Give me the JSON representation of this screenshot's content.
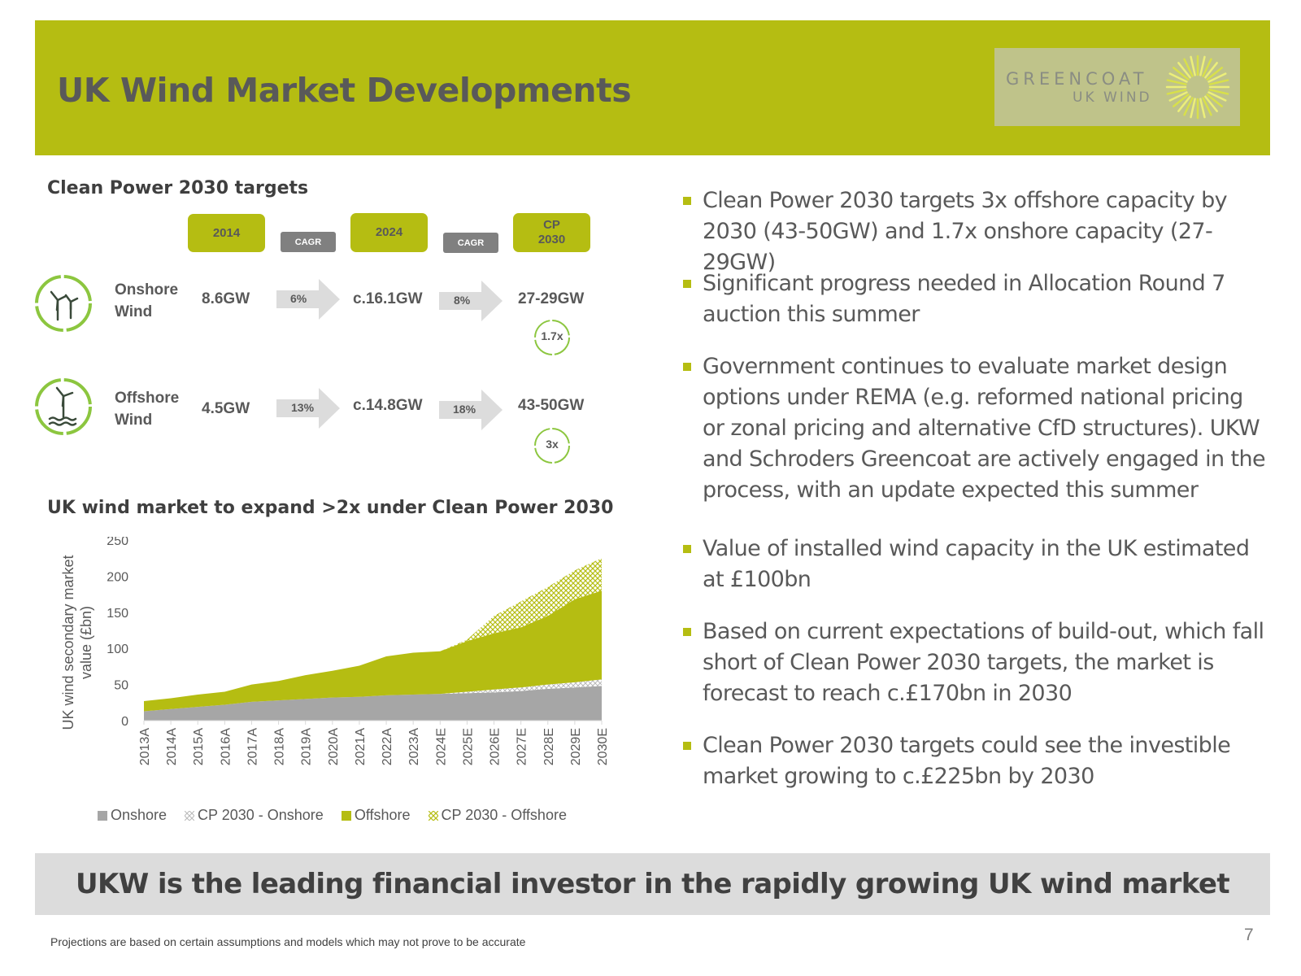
{
  "header": {
    "title": "UK Wind Market Developments",
    "logo_line1": "GREENCOAT",
    "logo_line2": "UK WIND",
    "colors": {
      "accent": "#b5bd12",
      "text": "#595959"
    }
  },
  "targets": {
    "title": "Clean Power 2030 targets",
    "columns": [
      "2014",
      "2024",
      "CP\n2030"
    ],
    "cagr_label": "CAGR",
    "rows": [
      {
        "icon": "onshore-turbine-icon",
        "label": "Onshore\nWind",
        "v2014": "8.6GW",
        "cagr1": "6%",
        "v2024": "c.16.1GW",
        "cagr2": "8%",
        "v2030": "27-29GW",
        "multiple": "1.7x"
      },
      {
        "icon": "offshore-turbine-icon",
        "label": "Offshore\nWind",
        "v2014": "4.5GW",
        "cagr1": "13%",
        "v2024": "c.14.8GW",
        "cagr2": "18%",
        "v2030": "43-50GW",
        "multiple": "3x"
      }
    ]
  },
  "chart_title": "UK wind market to expand >2x under Clean Power 2030",
  "chart_data": {
    "type": "area",
    "stacked": true,
    "title": "UK wind market to expand >2x under Clean Power 2030",
    "ylabel": "UK wind secondary market value (£bn)",
    "ylim": [
      0,
      250
    ],
    "yticks": [
      0,
      50,
      100,
      150,
      200,
      250
    ],
    "categories": [
      "2013A",
      "2014A",
      "2015A",
      "2016A",
      "2017A",
      "2018A",
      "2019A",
      "2020A",
      "2021A",
      "2022A",
      "2023A",
      "2024E",
      "2025E",
      "2026E",
      "2027E",
      "2028E",
      "2029E",
      "2030E"
    ],
    "series": [
      {
        "name": "Onshore",
        "color": "#a6a6a6",
        "pattern": false,
        "values": [
          13,
          16,
          19,
          22,
          26,
          28,
          30,
          32,
          33,
          35,
          36,
          37,
          38,
          39,
          41,
          44,
          46,
          48
        ]
      },
      {
        "name": "CP 2030 - Onshore",
        "color": "#d0d0d0",
        "pattern": true,
        "values": [
          0,
          0,
          0,
          0,
          0,
          0,
          0,
          0,
          0,
          0,
          0,
          0,
          2,
          4,
          5,
          6,
          7,
          9
        ]
      },
      {
        "name": "Offshore",
        "color": "#b5bd12",
        "pattern": false,
        "values": [
          14,
          15,
          17,
          18,
          24,
          27,
          33,
          37,
          43,
          54,
          58,
          59,
          70,
          78,
          83,
          95,
          115,
          123
        ]
      },
      {
        "name": "CP 2030 - Offshore",
        "color": "#cdd45a",
        "pattern": true,
        "values": [
          0,
          0,
          0,
          0,
          0,
          0,
          0,
          0,
          0,
          0,
          0,
          0,
          2,
          24,
          36,
          40,
          40,
          45
        ]
      }
    ],
    "grid": false,
    "legend": "bottom"
  },
  "bullets": [
    "Clean Power 2030 targets 3x offshore capacity by 2030 (43-50GW) and 1.7x onshore capacity (27-29GW)",
    "Significant progress needed in Allocation Round 7 auction this summer",
    "Government continues to evaluate market design options under REMA (e.g. reformed national pricing or zonal pricing and alternative CfD structures). UKW and Schroders Greencoat are actively engaged in the process, with an update expected this summer",
    "Value of installed wind capacity in the UK estimated at £100bn",
    "Based on current expectations of build-out, which fall short of Clean Power 2030 targets, the market is forecast to reach c.£170bn in 2030",
    "Clean Power 2030 targets could see the investible market growing to c.£225bn by 2030"
  ],
  "banner": "UKW is the leading financial investor in the rapidly growing UK wind market",
  "disclaimer": "Projections are based on certain assumptions and models which may not prove to be accurate",
  "page_number": "7"
}
